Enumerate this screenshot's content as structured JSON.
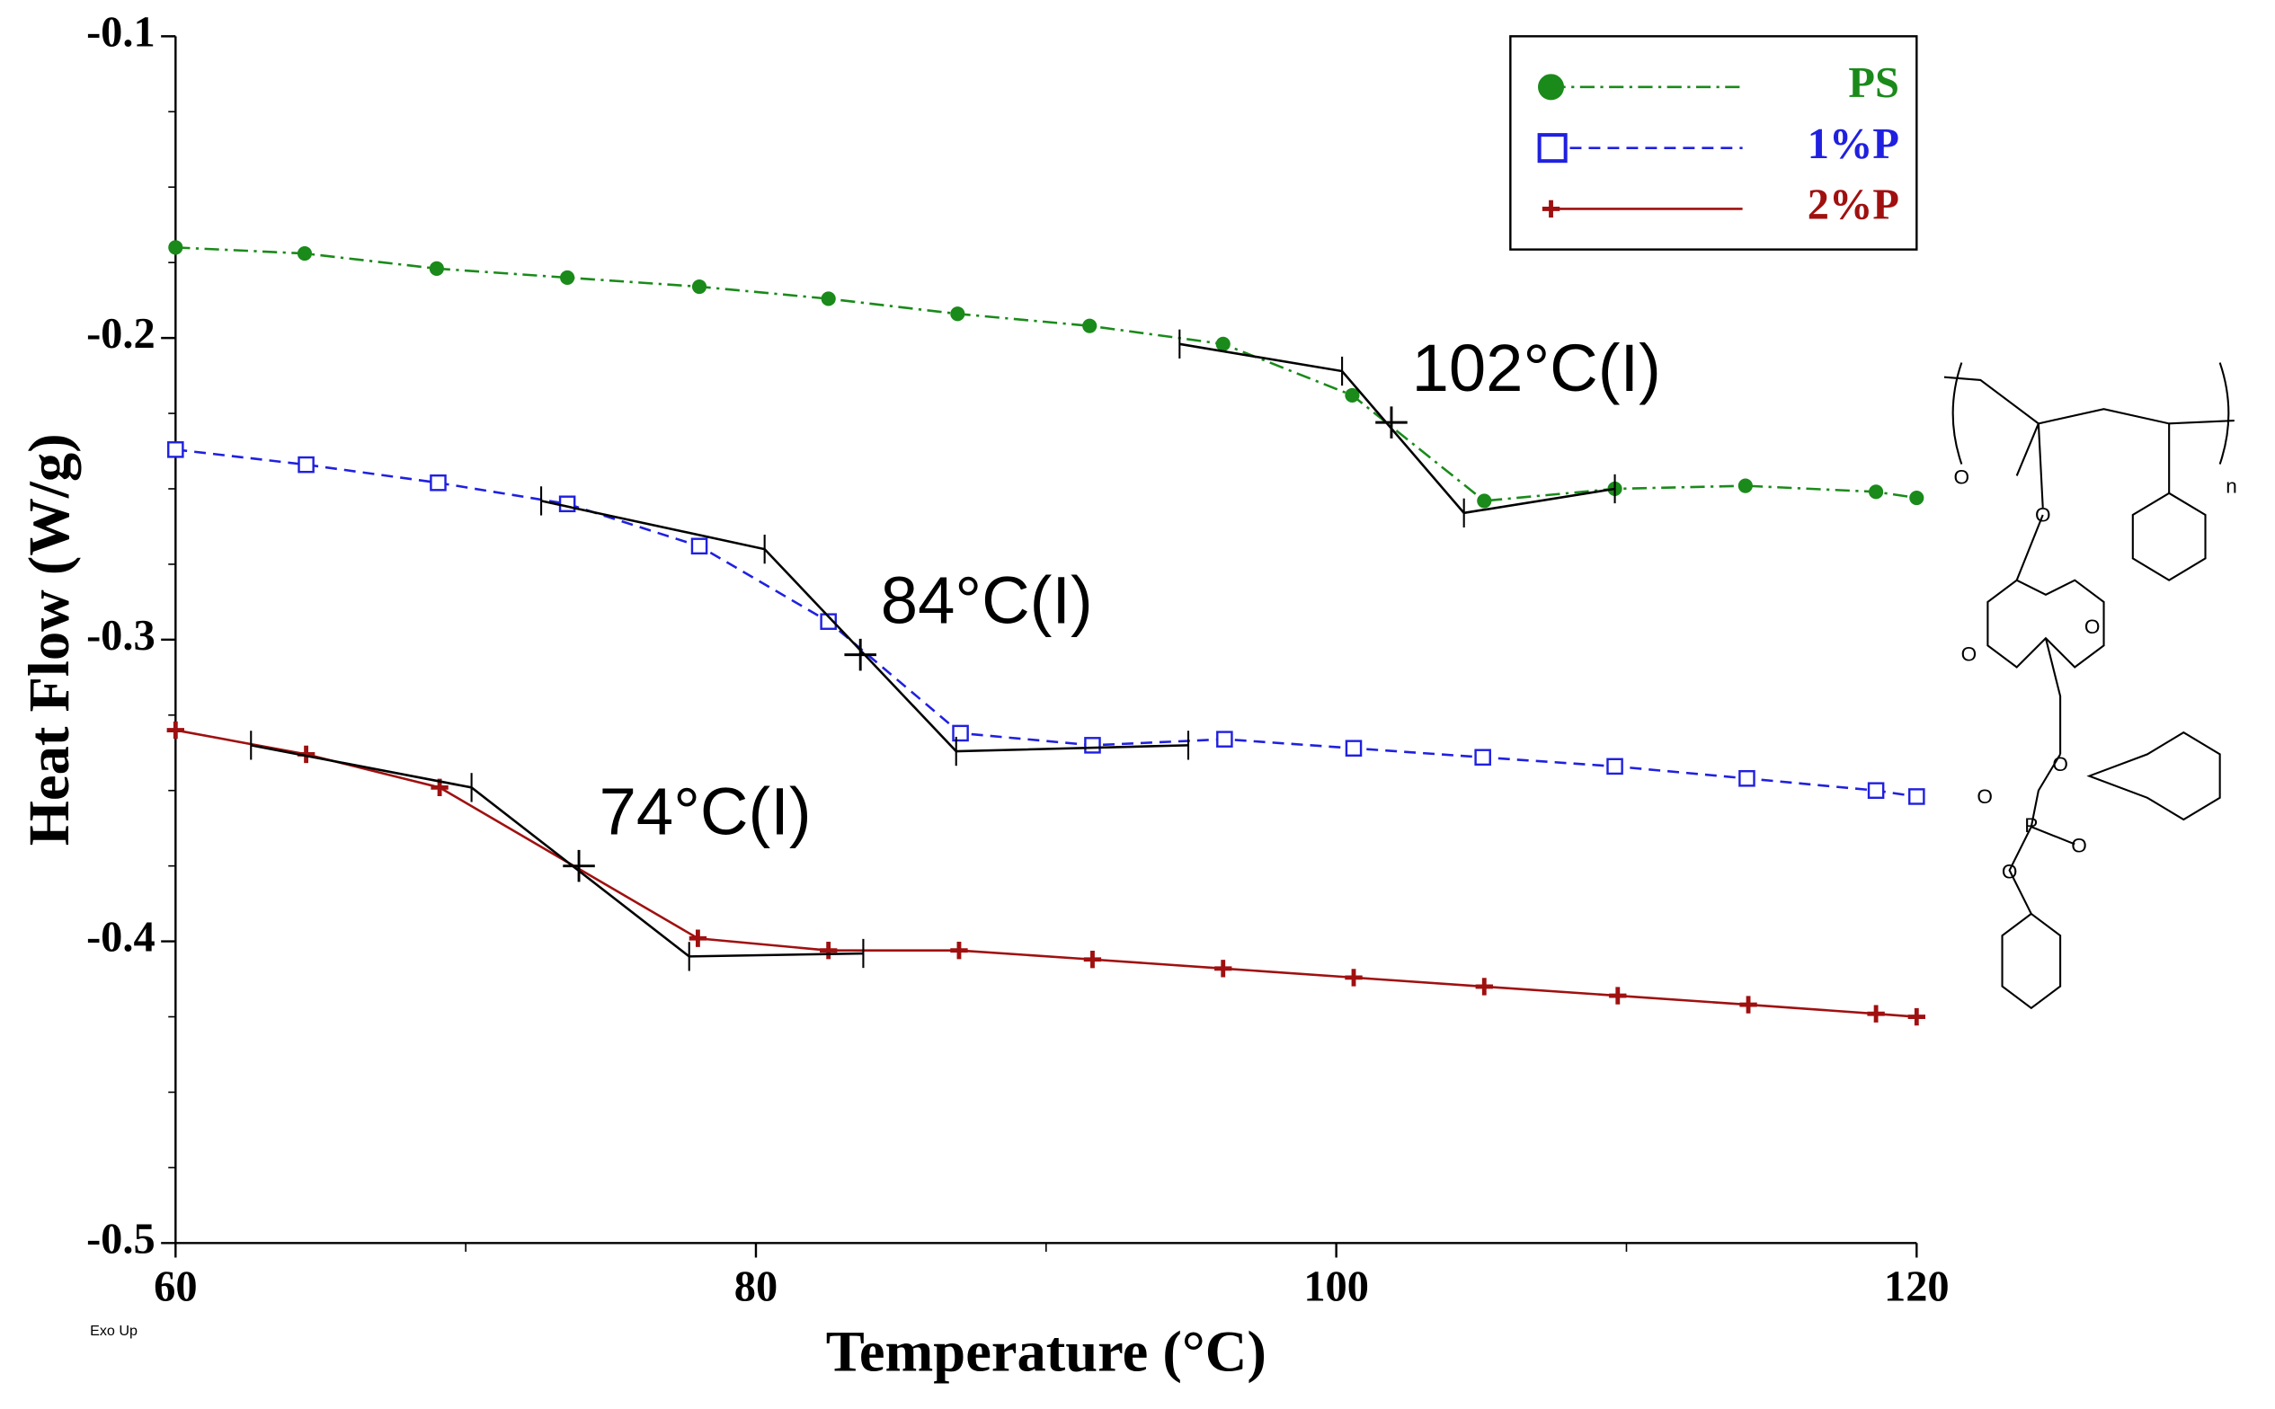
{
  "chart_data": {
    "type": "line",
    "xlabel": "Temperature (°C)",
    "ylabel": "Heat Flow (W/g)",
    "corner_note": "Exo Up",
    "xlim": [
      60,
      120
    ],
    "ylim": [
      -0.5,
      -0.1
    ],
    "xticks": [
      60,
      80,
      100,
      120
    ],
    "yticks": [
      -0.5,
      -0.4,
      -0.3,
      -0.2,
      -0.1
    ],
    "legend": "upper right",
    "series": [
      {
        "name": "PS",
        "color": "#1a8a1a",
        "marker": "circle",
        "dash": "dashdot",
        "x": [
          60,
          64.45,
          69,
          73.5,
          78.05,
          82.5,
          86.95,
          91.5,
          96.1,
          100.55,
          105.1,
          109.6,
          114.1,
          118.6,
          120
        ],
        "values": [
          -0.17,
          -0.172,
          -0.177,
          -0.18,
          -0.183,
          -0.187,
          -0.192,
          -0.196,
          -0.202,
          -0.219,
          -0.254,
          -0.25,
          -0.249,
          -0.251,
          -0.253
        ],
        "tangent_x": [
          94.6,
          100.2,
          104.4,
          109.6
        ],
        "tangent_y": [
          -0.202,
          -0.211,
          -0.258,
          -0.25
        ],
        "tg_x": 101.9,
        "tg_y": -0.228,
        "annotation": "102°C(I)"
      },
      {
        "name": "1%P",
        "color": "#2020e0",
        "marker": "square",
        "dash": "dashed",
        "x": [
          60,
          64.5,
          69.05,
          73.5,
          78.05,
          82.5,
          87.05,
          91.6,
          96.15,
          100.6,
          105.05,
          109.6,
          114.15,
          118.6,
          120
        ],
        "values": [
          -0.237,
          -0.242,
          -0.248,
          -0.255,
          -0.269,
          -0.294,
          -0.331,
          -0.335,
          -0.333,
          -0.336,
          -0.339,
          -0.342,
          -0.346,
          -0.35,
          -0.352
        ],
        "tangent_x": [
          72.6,
          80.3,
          86.9,
          94.9
        ],
        "tangent_y": [
          -0.254,
          -0.27,
          -0.337,
          -0.335
        ],
        "tg_x": 83.6,
        "tg_y": -0.305,
        "annotation": "84°C(I)"
      },
      {
        "name": "2%P",
        "color": "#a01010",
        "marker": "star",
        "dash": "solid",
        "x": [
          60,
          64.5,
          69.1,
          78,
          82.5,
          87,
          91.6,
          96.1,
          100.6,
          105.1,
          109.7,
          114.2,
          118.6,
          120
        ],
        "values": [
          -0.33,
          -0.338,
          -0.349,
          -0.399,
          -0.403,
          -0.403,
          -0.406,
          -0.409,
          -0.412,
          -0.415,
          -0.418,
          -0.421,
          -0.424,
          -0.425
        ],
        "tangent_x": [
          62.6,
          70.2,
          77.7,
          83.7
        ],
        "tangent_y": [
          -0.335,
          -0.349,
          -0.405,
          -0.404
        ],
        "tg_x": 73.9,
        "tg_y": -0.375,
        "annotation": "74°C(I)"
      }
    ]
  },
  "structure": {
    "atoms": [
      "O",
      "O",
      "O",
      "O",
      "O",
      "O",
      "P",
      "O",
      "O",
      "n"
    ]
  }
}
